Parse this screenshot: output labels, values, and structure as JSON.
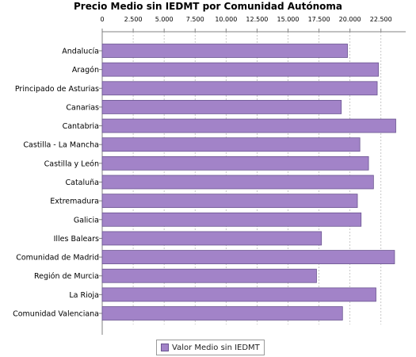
{
  "chart_data": {
    "type": "bar",
    "orientation": "horizontal",
    "title": "Precio Medio sin IEDMT por Comunidad Autónoma",
    "categories": [
      "Andalucía",
      "Aragón",
      "Principado de Asturias",
      "Canarias",
      "Cantabria",
      "Castilla - La Mancha",
      "Castilla y León",
      "Cataluña",
      "Extremadura",
      "Galicia",
      "Illes Balears",
      "Comunidad de Madrid",
      "Región de Murcia",
      "La Rioja",
      "Comunidad Valenciana"
    ],
    "series": [
      {
        "name": "Valor Medio sin IEDMT",
        "values": [
          19800,
          22300,
          22200,
          19300,
          23700,
          20800,
          21500,
          21900,
          20600,
          20900,
          17700,
          23600,
          17300,
          22100,
          19400
        ]
      }
    ],
    "xlim": [
      0,
      24500
    ],
    "x_ticks": [
      0,
      2500,
      5000,
      7500,
      10000,
      12500,
      15000,
      17500,
      20000,
      22500
    ],
    "x_tick_labels": [
      "0",
      "2.500",
      "5.000",
      "7.500",
      "10.000",
      "12.500",
      "15.000",
      "17.500",
      "20.000",
      "22.500"
    ],
    "grid": true,
    "legend_position": "bottom",
    "bar_color": "#a283c8",
    "bar_border_color": "#6a5490"
  }
}
